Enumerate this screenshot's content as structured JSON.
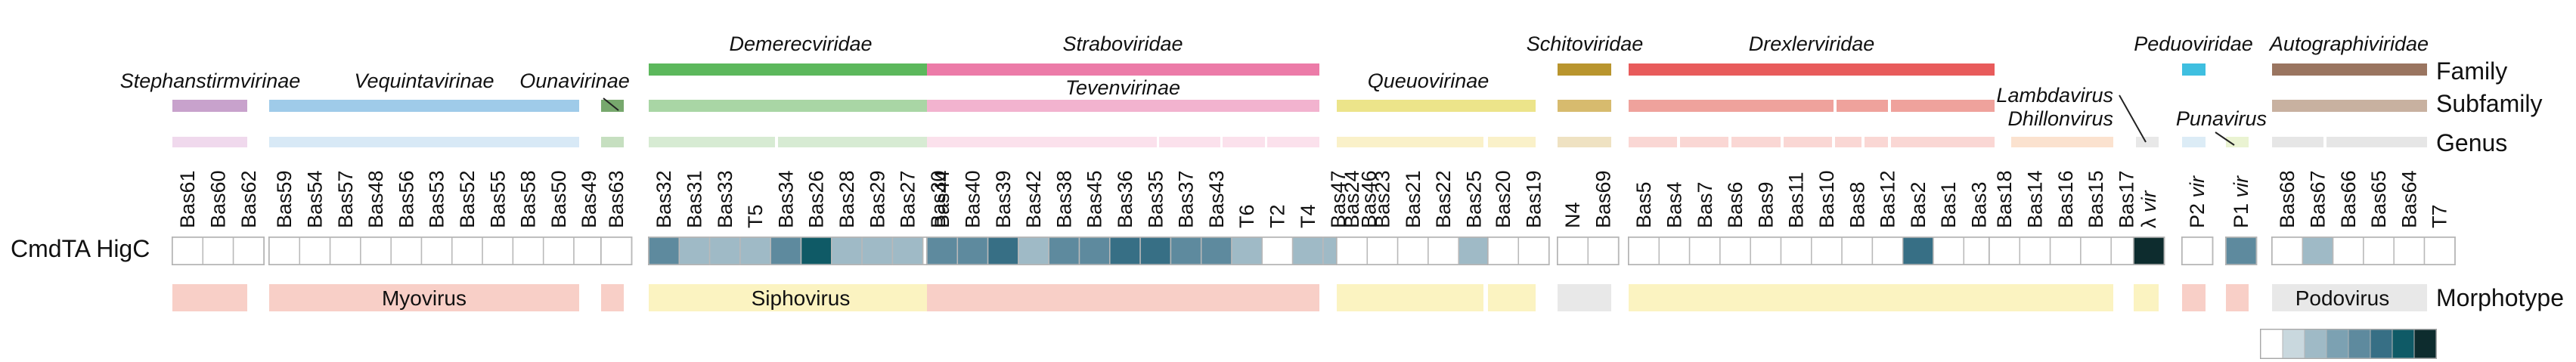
{
  "row_labels": {
    "family": "Family",
    "subfamily": "Subfamily",
    "genus": "Genus",
    "morphotype": "Morphotype",
    "cmdta": "CmdTA HigC"
  },
  "families": [
    {
      "name": "Demerecviridae",
      "color": "#5cb85c"
    },
    {
      "name": "Straboviridae",
      "color": "#ec7ba8"
    },
    {
      "name": "Schitoviridae",
      "color": "#b9952e"
    },
    {
      "name": "Drexlerviridae",
      "color": "#e85b5b"
    },
    {
      "name": "Peduoviridae",
      "color": "#3fbfe0"
    },
    {
      "name": "Autographiviridae",
      "color": "#9a7560"
    }
  ],
  "subfamilies": [
    {
      "name": "Stephanstirmvirinae",
      "color": "#c8a2cc"
    },
    {
      "name": "Vequintavirinae",
      "color": "#9fcbe9"
    },
    {
      "name": "Ounavirinae",
      "color": "#77a86d"
    },
    {
      "name": "Tevenvirinae",
      "color": "#f2b3cf"
    },
    {
      "name": "Queuovirinae",
      "color": "#ece48a"
    }
  ],
  "genus_labels": [
    "Lambdavirus",
    "Dhillonvirus",
    "Punavirus"
  ],
  "morphotypes": [
    "Myovirus",
    "Siphovirus",
    "Podovirus"
  ],
  "phages": [
    "Bas61",
    "Bas60",
    "Bas62",
    "Bas59",
    "Bas54",
    "Bas57",
    "Bas48",
    "Bas56",
    "Bas53",
    "Bas52",
    "Bas55",
    "Bas58",
    "Bas50",
    "Bas49",
    "Bas63",
    "Bas32",
    "Bas31",
    "Bas33",
    "T5",
    "Bas34",
    "Bas26",
    "Bas28",
    "Bas29",
    "Bas27",
    "Bas30",
    "Bas44",
    "Bas40",
    "Bas39",
    "Bas42",
    "Bas38",
    "Bas45",
    "Bas36",
    "Bas35",
    "Bas37",
    "Bas43",
    "T6",
    "T2",
    "T4",
    "Bas47",
    "Bas46",
    "Bas24",
    "Bas23",
    "Bas21",
    "Bas22",
    "Bas25",
    "Bas20",
    "Bas19",
    "N4",
    "Bas69",
    "Bas5",
    "Bas4",
    "Bas7",
    "Bas6",
    "Bas9",
    "Bas11",
    "Bas10",
    "Bas8",
    "Bas12",
    "Bas2",
    "Bas1",
    "Bas3",
    "Bas18",
    "Bas14",
    "Bas16",
    "Bas15",
    "Bas17",
    "λ vir",
    "P2 vir",
    "P1 vir",
    "Bas68",
    "Bas67",
    "Bas66",
    "Bas65",
    "Bas64",
    "T7"
  ],
  "colors": {
    "scale": [
      "#ffffff",
      "#c9d8de",
      "#9fbac6",
      "#7ca1b2",
      "#5e8a9e",
      "#376f85",
      "#0f5a66",
      "#0d2c2e"
    ]
  },
  "chart_data": {
    "type": "heatmap",
    "row": "CmdTA HigC",
    "levels": [
      0,
      0,
      0,
      0,
      0,
      0,
      0,
      0,
      0,
      0,
      0,
      0,
      0,
      0,
      0,
      4,
      2,
      2,
      2,
      4,
      6,
      2,
      2,
      2,
      0,
      4,
      4,
      5,
      2,
      4,
      4,
      5,
      5,
      4,
      4,
      2,
      0,
      2,
      2,
      2,
      0,
      0,
      0,
      0,
      2,
      0,
      0,
      0,
      0,
      0,
      0,
      0,
      0,
      0,
      0,
      0,
      0,
      0,
      5,
      0,
      0,
      0,
      0,
      0,
      0,
      0,
      7,
      0,
      4,
      0,
      2,
      0,
      0,
      0,
      0
    ]
  }
}
